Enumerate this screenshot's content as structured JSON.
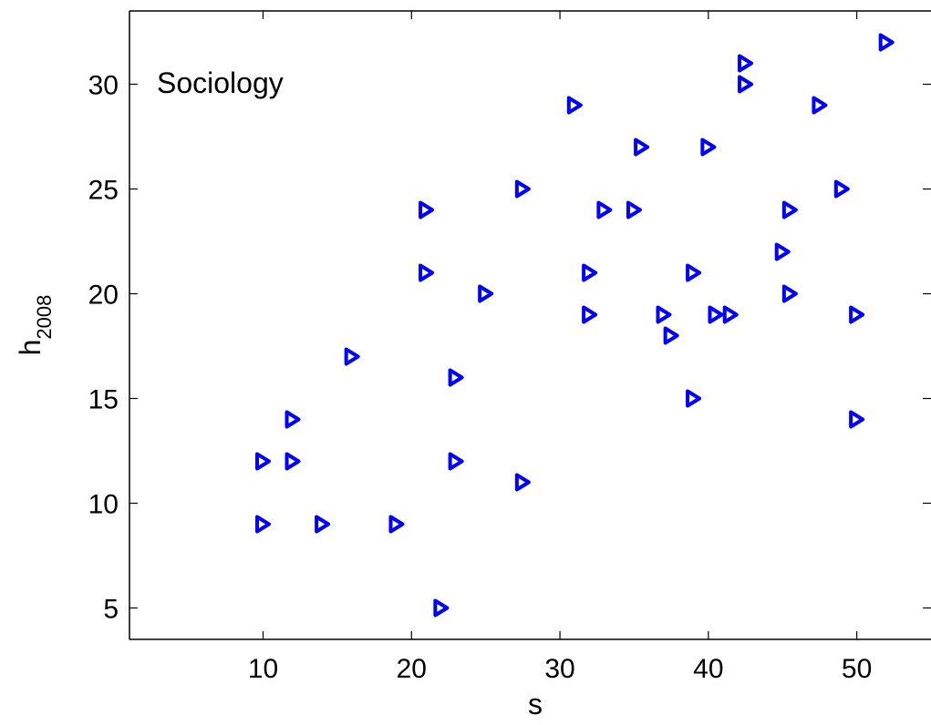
{
  "chart_data": {
    "type": "scatter",
    "title": "",
    "annotation": "Sociology",
    "xlabel": "s",
    "ylabel_main": "h",
    "ylabel_sub": "2008",
    "xlim": [
      1,
      55
    ],
    "ylim": [
      3.5,
      33.5
    ],
    "xticks": [
      10,
      20,
      30,
      40,
      50
    ],
    "yticks": [
      5,
      10,
      15,
      20,
      25,
      30
    ],
    "grid": false,
    "marker": "triangle-right",
    "colors": {
      "marker": "#0000ff",
      "axis": "#000000",
      "background": "#ffffff"
    },
    "points": [
      {
        "x": 10,
        "y": 9
      },
      {
        "x": 10,
        "y": 12
      },
      {
        "x": 12,
        "y": 12
      },
      {
        "x": 12,
        "y": 14
      },
      {
        "x": 14,
        "y": 9
      },
      {
        "x": 16,
        "y": 17
      },
      {
        "x": 19,
        "y": 9
      },
      {
        "x": 21,
        "y": 21
      },
      {
        "x": 21,
        "y": 24
      },
      {
        "x": 22,
        "y": 5
      },
      {
        "x": 23,
        "y": 16
      },
      {
        "x": 23,
        "y": 12
      },
      {
        "x": 25,
        "y": 20
      },
      {
        "x": 27.5,
        "y": 25
      },
      {
        "x": 27.5,
        "y": 11
      },
      {
        "x": 31,
        "y": 29
      },
      {
        "x": 32,
        "y": 21
      },
      {
        "x": 32,
        "y": 19
      },
      {
        "x": 33,
        "y": 24
      },
      {
        "x": 35,
        "y": 24
      },
      {
        "x": 35.5,
        "y": 27
      },
      {
        "x": 37,
        "y": 19
      },
      {
        "x": 37.5,
        "y": 18
      },
      {
        "x": 39,
        "y": 21
      },
      {
        "x": 39,
        "y": 15
      },
      {
        "x": 40,
        "y": 27
      },
      {
        "x": 40.5,
        "y": 19
      },
      {
        "x": 41.5,
        "y": 19
      },
      {
        "x": 42.5,
        "y": 31
      },
      {
        "x": 42.5,
        "y": 30
      },
      {
        "x": 45,
        "y": 22
      },
      {
        "x": 45.5,
        "y": 24
      },
      {
        "x": 45.5,
        "y": 20
      },
      {
        "x": 47.5,
        "y": 29
      },
      {
        "x": 49,
        "y": 25
      },
      {
        "x": 50,
        "y": 19
      },
      {
        "x": 50,
        "y": 14
      },
      {
        "x": 52,
        "y": 32
      }
    ]
  }
}
